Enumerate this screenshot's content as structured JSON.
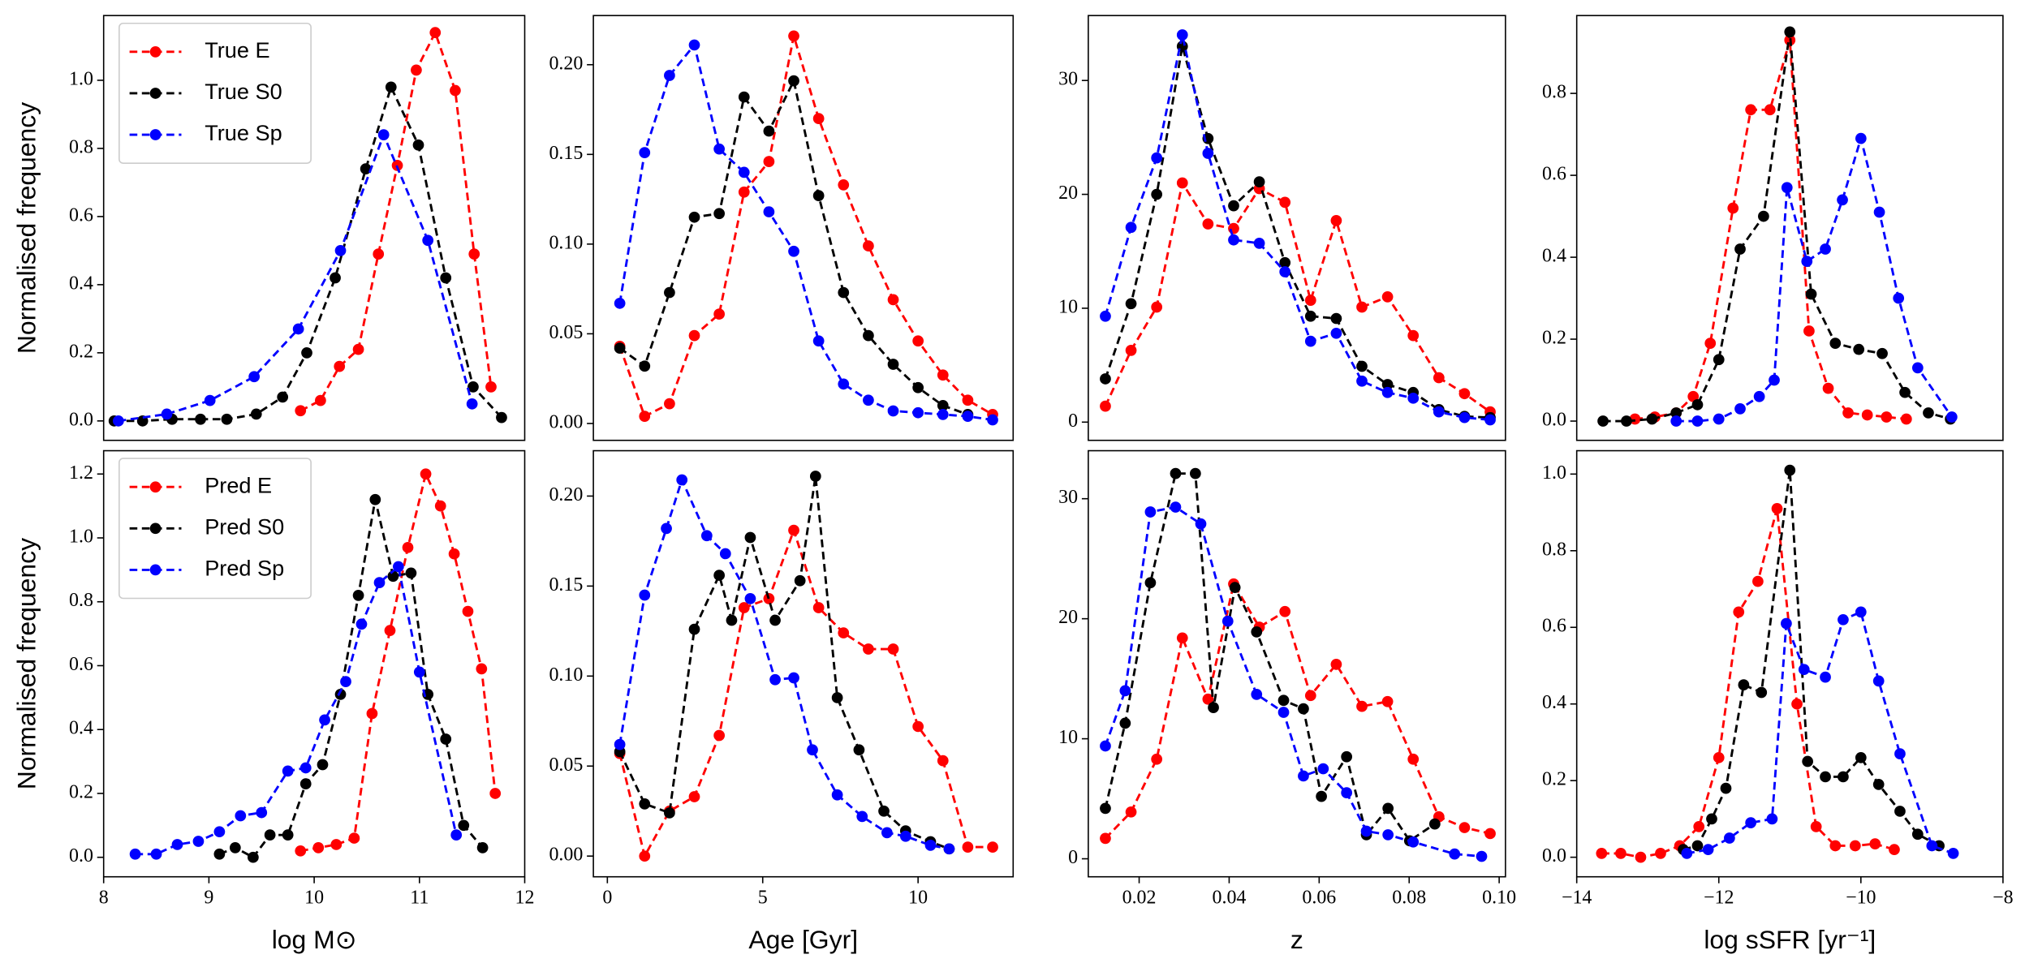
{
  "chart_data": [
    {
      "type": "line",
      "xlim": [
        8,
        12
      ],
      "ylim": [
        -0.057,
        1.19
      ],
      "yticks": [
        {
          "value": 0,
          "label": "0.0"
        },
        0.2,
        0.4,
        0.6,
        0.8,
        {
          "value": 1,
          "label": "1.0"
        }
      ],
      "ylabel": "Normalised frequency",
      "legend": "upper left",
      "series": [
        {
          "name": "True E",
          "color": "#ff0000",
          "x": [
            9.87,
            10.06,
            10.24,
            10.42,
            10.61,
            10.79,
            10.97,
            11.15,
            11.34,
            11.52,
            11.68
          ],
          "values": [
            0.03,
            0.06,
            0.16,
            0.21,
            0.49,
            0.75,
            1.03,
            1.14,
            0.97,
            0.49,
            0.1
          ]
        },
        {
          "name": "True S0",
          "color": "#000000",
          "x": [
            8.1,
            8.37,
            8.65,
            8.92,
            9.17,
            9.45,
            9.7,
            9.93,
            10.2,
            10.49,
            10.73,
            10.99,
            11.25,
            11.51,
            11.78
          ],
          "values": [
            0,
            0,
            0.005,
            0.005,
            0.005,
            0.02,
            0.07,
            0.2,
            0.42,
            0.74,
            0.98,
            0.81,
            0.42,
            0.1,
            0.01
          ]
        },
        {
          "name": "True Sp",
          "color": "#0000ff",
          "x": [
            8.14,
            8.6,
            9.01,
            9.43,
            9.85,
            10.25,
            10.66,
            11.08,
            11.5
          ],
          "values": [
            0,
            0.02,
            0.06,
            0.13,
            0.27,
            0.5,
            0.84,
            0.53,
            0.05
          ]
        }
      ]
    },
    {
      "type": "line",
      "xlim": [
        -0.45,
        13.06
      ],
      "ylim": [
        -0.0094,
        0.2274
      ],
      "yticks": [
        {
          "value": 0,
          "label": "0.00"
        },
        0.05,
        {
          "value": 0.1,
          "label": "0.10"
        },
        0.15,
        {
          "value": 0.2,
          "label": "0.20"
        }
      ],
      "series": [
        {
          "color": "#ff0000",
          "x": [
            0.4,
            1.2,
            2.0,
            2.8,
            3.6,
            4.4,
            5.2,
            6.0,
            6.8,
            7.6,
            8.4,
            9.2,
            10.0,
            10.8,
            11.6,
            12.4
          ],
          "values": [
            0.043,
            0.004,
            0.011,
            0.049,
            0.061,
            0.129,
            0.146,
            0.216,
            0.17,
            0.133,
            0.099,
            0.069,
            0.046,
            0.027,
            0.013,
            0.005
          ]
        },
        {
          "color": "#000000",
          "x": [
            0.4,
            1.2,
            2.0,
            2.8,
            3.6,
            4.4,
            5.2,
            6.0,
            6.8,
            7.6,
            8.4,
            9.2,
            10.0,
            10.8,
            11.6
          ],
          "values": [
            0.042,
            0.032,
            0.073,
            0.115,
            0.117,
            0.182,
            0.163,
            0.191,
            0.127,
            0.073,
            0.049,
            0.033,
            0.02,
            0.01,
            0.005
          ]
        },
        {
          "color": "#0000ff",
          "x": [
            0.4,
            1.2,
            2.0,
            2.8,
            3.6,
            4.4,
            5.2,
            6.0,
            6.8,
            7.6,
            8.4,
            9.2,
            10.0,
            10.8,
            11.6,
            12.4
          ],
          "values": [
            0.067,
            0.151,
            0.194,
            0.211,
            0.153,
            0.14,
            0.118,
            0.096,
            0.046,
            0.022,
            0.013,
            0.007,
            0.006,
            0.005,
            0.004,
            0.002
          ]
        }
      ]
    },
    {
      "type": "line",
      "xlim": [
        0.0087,
        0.1014
      ],
      "ylim": [
        -1.6,
        35.7
      ],
      "yticks": [
        0,
        10,
        20,
        30
      ],
      "series": [
        {
          "color": "#ff0000",
          "x": [
            0.0125,
            0.0182,
            0.0239,
            0.0296,
            0.0353,
            0.041,
            0.0467,
            0.0524,
            0.0581,
            0.0638,
            0.0695,
            0.0752,
            0.0809,
            0.0866,
            0.0923,
            0.098
          ],
          "values": [
            1.4,
            6.3,
            10.1,
            21.0,
            17.4,
            17.0,
            20.5,
            19.3,
            10.7,
            17.7,
            10.1,
            11.0,
            7.6,
            3.9,
            2.5,
            0.9
          ]
        },
        {
          "color": "#000000",
          "x": [
            0.0125,
            0.0182,
            0.0239,
            0.0296,
            0.0353,
            0.041,
            0.0467,
            0.0524,
            0.0581,
            0.0638,
            0.0695,
            0.0752,
            0.0809,
            0.0866,
            0.0923,
            0.098
          ],
          "values": [
            3.8,
            10.4,
            20.0,
            33.0,
            24.9,
            19.0,
            21.1,
            14.0,
            9.3,
            9.1,
            4.9,
            3.3,
            2.6,
            1.1,
            0.5,
            0.4
          ]
        },
        {
          "color": "#0000ff",
          "x": [
            0.0125,
            0.0182,
            0.0239,
            0.0296,
            0.0353,
            0.041,
            0.0467,
            0.0524,
            0.0581,
            0.0638,
            0.0695,
            0.0752,
            0.0809,
            0.0866,
            0.0923,
            0.098
          ],
          "values": [
            9.3,
            17.1,
            23.2,
            34.0,
            23.6,
            16.0,
            15.7,
            13.2,
            7.1,
            7.8,
            3.6,
            2.6,
            2.1,
            0.9,
            0.4,
            0.2
          ]
        }
      ]
    },
    {
      "type": "line",
      "xlim": [
        -14,
        -8
      ],
      "ylim": [
        -0.047,
        0.99
      ],
      "yticks": [
        {
          "value": 0,
          "label": "0.0"
        },
        0.2,
        0.4,
        0.6,
        0.8
      ],
      "series": [
        {
          "color": "#ff0000",
          "x": [
            -13.18,
            -12.9,
            -12.6,
            -12.36,
            -12.12,
            -11.8,
            -11.55,
            -11.28,
            -11.0,
            -10.73,
            -10.46,
            -10.18,
            -9.91,
            -9.64,
            -9.36
          ],
          "values": [
            0.005,
            0.01,
            0.02,
            0.06,
            0.19,
            0.52,
            0.76,
            0.76,
            0.93,
            0.22,
            0.08,
            0.02,
            0.015,
            0.01,
            0.005
          ]
        },
        {
          "color": "#000000",
          "x": [
            -13.63,
            -13.3,
            -12.94,
            -12.6,
            -12.3,
            -12.0,
            -11.7,
            -11.37,
            -11.0,
            -10.7,
            -10.36,
            -10.03,
            -9.7,
            -9.38,
            -9.05,
            -8.74
          ],
          "values": [
            0,
            0,
            0.005,
            0.02,
            0.04,
            0.15,
            0.42,
            0.5,
            0.95,
            0.31,
            0.19,
            0.175,
            0.165,
            0.07,
            0.02,
            0.005
          ]
        },
        {
          "color": "#0000ff",
          "x": [
            -12.6,
            -12.3,
            -12.0,
            -11.7,
            -11.43,
            -11.22,
            -11.04,
            -10.76,
            -10.5,
            -10.26,
            -10.0,
            -9.74,
            -9.47,
            -9.2,
            -8.72
          ],
          "values": [
            0,
            0,
            0.005,
            0.03,
            0.06,
            0.1,
            0.57,
            0.39,
            0.42,
            0.54,
            0.69,
            0.51,
            0.3,
            0.13,
            0.01
          ]
        }
      ]
    },
    {
      "type": "line",
      "xlim": [
        8,
        12
      ],
      "xticks": [
        8,
        9,
        10,
        11,
        12
      ],
      "ylim": [
        -0.061,
        1.273
      ],
      "yticks": [
        {
          "value": 0,
          "label": "0.0"
        },
        0.2,
        0.4,
        0.6,
        0.8,
        {
          "value": 1,
          "label": "1.0"
        },
        1.2
      ],
      "xlabel": "log M⊙",
      "ylabel": "Normalised frequency",
      "legend": "upper left",
      "series": [
        {
          "name": "Pred E",
          "color": "#ff0000",
          "x": [
            9.87,
            10.04,
            10.21,
            10.38,
            10.55,
            10.72,
            10.89,
            11.06,
            11.2,
            11.33,
            11.46,
            11.59,
            11.72
          ],
          "values": [
            0.02,
            0.03,
            0.04,
            0.06,
            0.45,
            0.71,
            0.97,
            1.2,
            1.1,
            0.95,
            0.77,
            0.59,
            0.2
          ]
        },
        {
          "name": "Pred S0",
          "color": "#000000",
          "x": [
            9.1,
            9.25,
            9.42,
            9.58,
            9.75,
            9.92,
            10.08,
            10.25,
            10.42,
            10.58,
            10.75,
            10.92,
            11.08,
            11.25,
            11.42,
            11.6
          ],
          "values": [
            0.01,
            0.03,
            0,
            0.07,
            0.07,
            0.23,
            0.29,
            0.51,
            0.82,
            1.12,
            0.88,
            0.89,
            0.51,
            0.37,
            0.1,
            0.03
          ]
        },
        {
          "name": "Pred Sp",
          "color": "#0000ff",
          "x": [
            8.3,
            8.5,
            8.7,
            8.9,
            9.1,
            9.3,
            9.5,
            9.75,
            9.92,
            10.1,
            10.3,
            10.45,
            10.62,
            10.8,
            11.0,
            11.35
          ],
          "values": [
            0.01,
            0.01,
            0.04,
            0.05,
            0.08,
            0.13,
            0.14,
            0.27,
            0.28,
            0.43,
            0.55,
            0.73,
            0.86,
            0.91,
            0.58,
            0.07
          ]
        }
      ]
    },
    {
      "type": "line",
      "xlim": [
        -0.45,
        13.06
      ],
      "xticks": [
        0,
        5,
        10
      ],
      "ylim": [
        -0.0115,
        0.2252
      ],
      "yticks": [
        {
          "value": 0,
          "label": "0.00"
        },
        0.05,
        {
          "value": 0.1,
          "label": "0.10"
        },
        0.15,
        {
          "value": 0.2,
          "label": "0.20"
        }
      ],
      "xlabel": "Age [Gyr]",
      "series": [
        {
          "color": "#ff0000",
          "x": [
            0.4,
            1.2,
            2.0,
            2.8,
            3.6,
            4.4,
            5.2,
            6.0,
            6.8,
            7.6,
            8.4,
            9.2,
            10.0,
            10.8,
            11.6,
            12.4
          ],
          "values": [
            0.057,
            0,
            0.025,
            0.033,
            0.067,
            0.138,
            0.143,
            0.181,
            0.138,
            0.124,
            0.115,
            0.115,
            0.072,
            0.053,
            0.005,
            0.005
          ]
        },
        {
          "color": "#000000",
          "x": [
            0.4,
            1.2,
            2.0,
            2.8,
            3.6,
            4.0,
            4.6,
            5.4,
            6.2,
            6.7,
            7.4,
            8.1,
            8.9,
            9.6,
            10.4,
            11.0
          ],
          "values": [
            0.058,
            0.029,
            0.024,
            0.126,
            0.156,
            0.131,
            0.177,
            0.131,
            0.153,
            0.211,
            0.088,
            0.059,
            0.025,
            0.014,
            0.008,
            0.004
          ]
        },
        {
          "color": "#0000ff",
          "x": [
            0.4,
            1.2,
            1.9,
            2.4,
            3.2,
            3.8,
            4.6,
            5.4,
            6.0,
            6.6,
            7.4,
            8.2,
            9.0,
            9.6,
            10.4,
            11.0
          ],
          "values": [
            0.062,
            0.145,
            0.182,
            0.209,
            0.178,
            0.168,
            0.143,
            0.098,
            0.099,
            0.059,
            0.034,
            0.022,
            0.013,
            0.011,
            0.006,
            0.004
          ]
        }
      ]
    },
    {
      "type": "line",
      "xlim": [
        0.0087,
        0.1014
      ],
      "xticks": [
        0.02,
        0.04,
        0.06,
        0.08,
        {
          "value": 0.1,
          "label": "0.10"
        }
      ],
      "ylim": [
        -1.5,
        34.0
      ],
      "yticks": [
        0,
        10,
        20,
        30
      ],
      "xlabel": "z",
      "series": [
        {
          "color": "#ff0000",
          "x": [
            0.0125,
            0.0182,
            0.0239,
            0.0296,
            0.0353,
            0.041,
            0.0467,
            0.0524,
            0.0581,
            0.0638,
            0.0695,
            0.0752,
            0.0809,
            0.0866,
            0.0923,
            0.098
          ],
          "values": [
            1.7,
            3.9,
            8.3,
            18.4,
            13.3,
            22.9,
            19.3,
            20.6,
            13.6,
            16.2,
            12.7,
            13.1,
            8.3,
            3.5,
            2.6,
            2.1
          ]
        },
        {
          "color": "#000000",
          "x": [
            0.0125,
            0.0169,
            0.0225,
            0.0281,
            0.0325,
            0.0365,
            0.0413,
            0.0461,
            0.0521,
            0.0565,
            0.0605,
            0.0661,
            0.0705,
            0.0753,
            0.0801,
            0.0857
          ],
          "values": [
            4.2,
            11.3,
            23.0,
            32.1,
            32.1,
            12.6,
            22.6,
            18.9,
            13.2,
            12.5,
            5.2,
            8.5,
            2.0,
            4.2,
            1.5,
            2.9
          ]
        },
        {
          "color": "#0000ff",
          "x": [
            0.0125,
            0.0169,
            0.0225,
            0.0281,
            0.0337,
            0.0397,
            0.0461,
            0.0521,
            0.0565,
            0.0609,
            0.0661,
            0.0705,
            0.0753,
            0.0809,
            0.0901,
            0.0961
          ],
          "values": [
            9.4,
            14.0,
            28.9,
            29.3,
            27.9,
            19.8,
            13.7,
            12.2,
            6.9,
            7.5,
            5.5,
            2.3,
            2.0,
            1.4,
            0.4,
            0.2
          ]
        }
      ]
    },
    {
      "type": "line",
      "xlim": [
        -14,
        -8
      ],
      "xticks": [
        {
          "value": -14,
          "label": "−14"
        },
        {
          "value": -12,
          "label": "−12"
        },
        {
          "value": -10,
          "label": "−10"
        },
        {
          "value": -8,
          "label": "−8"
        }
      ],
      "ylim": [
        -0.051,
        1.061
      ],
      "yticks": [
        {
          "value": 0,
          "label": "0.0"
        },
        0.2,
        0.4,
        0.6,
        0.8,
        {
          "value": 1,
          "label": "1.0"
        }
      ],
      "xlabel": "log sSFR [yr⁻¹]",
      "series": [
        {
          "color": "#ff0000",
          "x": [
            -13.65,
            -13.38,
            -13.1,
            -12.82,
            -12.55,
            -12.28,
            -12.0,
            -11.72,
            -11.45,
            -11.18,
            -10.9,
            -10.63,
            -10.36,
            -10.08,
            -9.8,
            -9.53
          ],
          "values": [
            0.01,
            0.01,
            0,
            0.01,
            0.03,
            0.08,
            0.26,
            0.64,
            0.72,
            0.91,
            0.4,
            0.08,
            0.03,
            0.03,
            0.035,
            0.02
          ]
        },
        {
          "color": "#000000",
          "x": [
            -12.5,
            -12.3,
            -12.1,
            -11.9,
            -11.65,
            -11.4,
            -11.0,
            -10.75,
            -10.5,
            -10.25,
            -10.0,
            -9.75,
            -9.45,
            -9.2,
            -8.9
          ],
          "values": [
            0.02,
            0.03,
            0.1,
            0.18,
            0.45,
            0.43,
            1.01,
            0.25,
            0.21,
            0.21,
            0.26,
            0.19,
            0.12,
            0.06,
            0.03
          ]
        },
        {
          "color": "#0000ff",
          "x": [
            -12.45,
            -12.15,
            -11.85,
            -11.55,
            -11.25,
            -11.05,
            -10.8,
            -10.5,
            -10.25,
            -10.0,
            -9.75,
            -9.45,
            -9.0,
            -8.7
          ],
          "values": [
            0.01,
            0.02,
            0.05,
            0.09,
            0.1,
            0.61,
            0.49,
            0.47,
            0.62,
            0.64,
            0.46,
            0.27,
            0.03,
            0.01
          ]
        }
      ]
    }
  ]
}
